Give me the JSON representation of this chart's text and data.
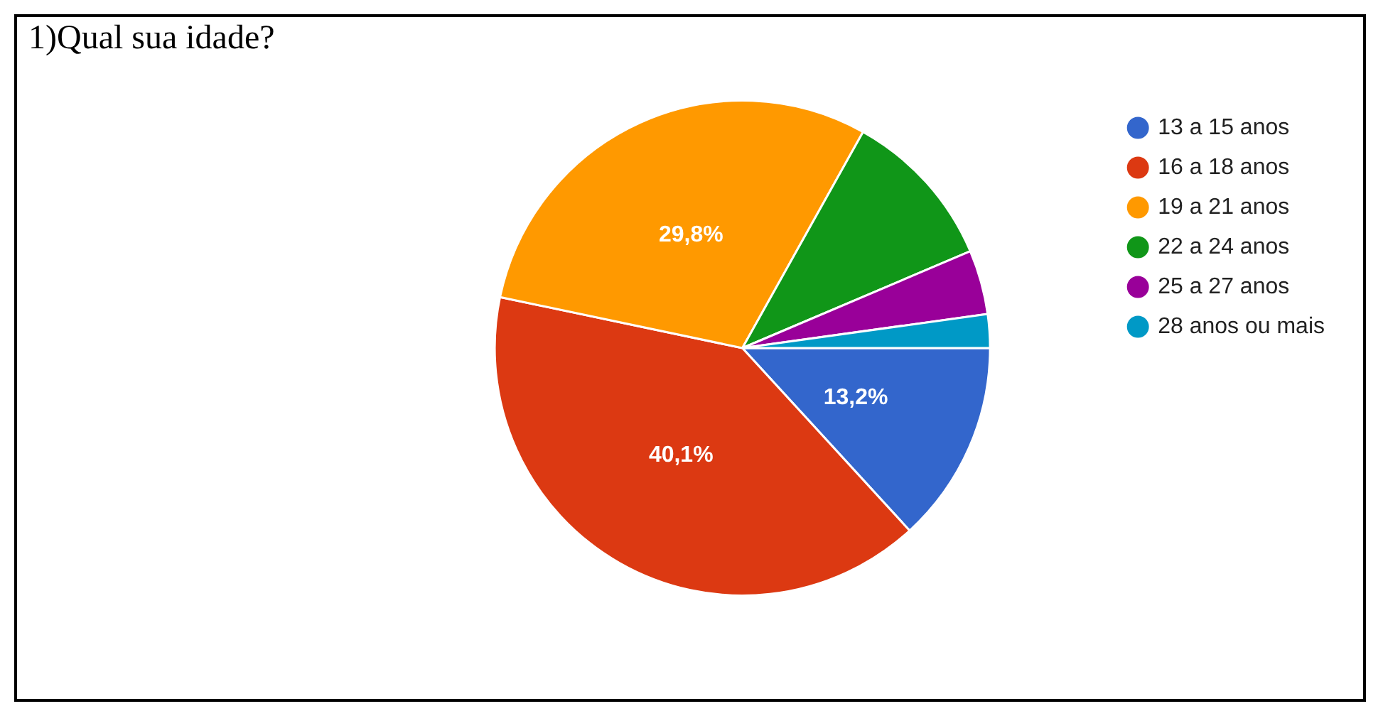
{
  "chart_data": {
    "type": "pie",
    "title": "1)Qual sua idade?",
    "categories": [
      "13 a 15 anos",
      "16 a 18 anos",
      "19 a 21 anos",
      "22 a 24 anos",
      "25 a 27 anos",
      "28 anos ou mais"
    ],
    "values": [
      13.2,
      40.1,
      29.8,
      10.5,
      4.2,
      2.2
    ],
    "colors": [
      "#3366cc",
      "#dc3912",
      "#ff9900",
      "#109618",
      "#990099",
      "#0099c6"
    ],
    "value_labels": [
      "13,2%",
      "40,1%",
      "29,8%",
      null,
      null,
      null
    ],
    "legend": "right"
  }
}
